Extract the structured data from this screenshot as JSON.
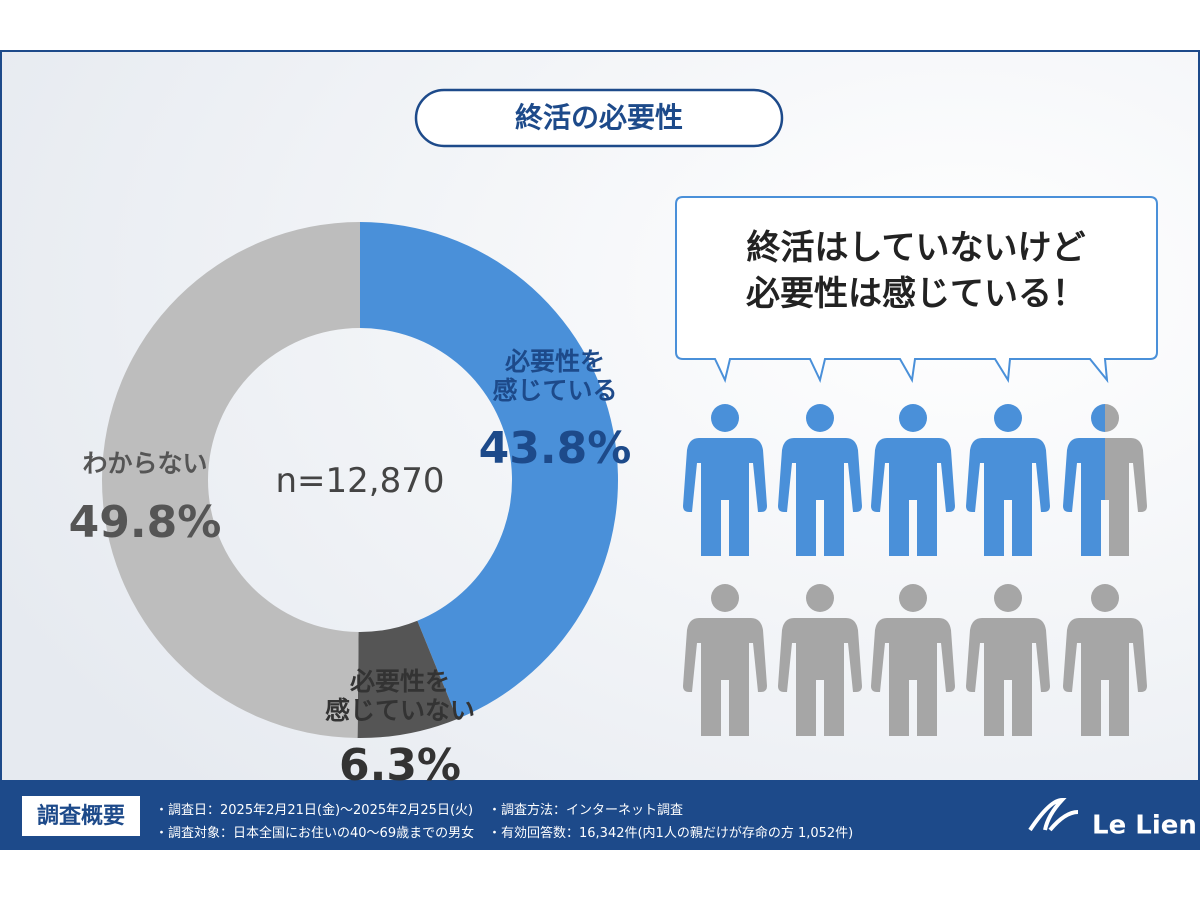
{
  "title": "終活の必要性",
  "chart_data": {
    "type": "pie",
    "donut": true,
    "categories": [
      "必要性を\n感じている",
      "必要性を\n感じていない",
      "わからない"
    ],
    "values": [
      43.8,
      6.3,
      49.8
    ],
    "value_labels": [
      "43.8%",
      "6.3%",
      "49.8%"
    ],
    "colors": [
      "#4a90d9",
      "#555555",
      "#bdbdbd"
    ],
    "center_label": "n=12,870"
  },
  "callout": "終活はしていないけど\n必要性は感じている！",
  "footer": {
    "heading": "調査概要",
    "items": [
      "・調査日：2025年2月21日(金)～2025年2月25日(火)",
      "・調査対象：日本全国にお住いの40～69歳までの男女",
      "・調査方法：インターネット調査",
      "・有効回答数：16,342件(内1人の親だけが存命の方 1,052件)"
    ],
    "brand": "Le Lien"
  }
}
